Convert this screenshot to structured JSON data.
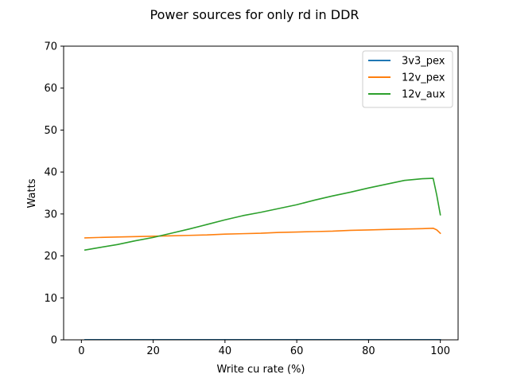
{
  "chart_data": {
    "type": "line",
    "title": "Power sources for only rd in DDR",
    "xlabel": "Write cu rate (%)",
    "ylabel": "Watts",
    "xlim": [
      -4.95,
      104.95
    ],
    "ylim": [
      0,
      70
    ],
    "xticks": [
      0,
      20,
      40,
      60,
      80,
      100
    ],
    "yticks": [
      0,
      10,
      20,
      30,
      40,
      50,
      60,
      70
    ],
    "legend_position": "top-right",
    "series": [
      {
        "name": "3v3_pex",
        "color": "#1f77b4",
        "x": [
          1,
          100
        ],
        "y": [
          0.05,
          0.05
        ]
      },
      {
        "name": "12v_pex",
        "color": "#ff7f0e",
        "x": [
          1,
          5,
          10,
          15,
          20,
          25,
          30,
          35,
          40,
          45,
          50,
          55,
          60,
          65,
          70,
          75,
          80,
          85,
          90,
          95,
          98,
          99,
          100
        ],
        "y": [
          24.3,
          24.4,
          24.5,
          24.6,
          24.7,
          24.8,
          24.9,
          25.0,
          25.2,
          25.3,
          25.4,
          25.6,
          25.7,
          25.8,
          25.9,
          26.1,
          26.2,
          26.3,
          26.4,
          26.5,
          26.6,
          26.2,
          25.4
        ]
      },
      {
        "name": "12v_aux",
        "color": "#2ca02c",
        "x": [
          1,
          5,
          10,
          15,
          20,
          25,
          30,
          35,
          40,
          45,
          50,
          55,
          60,
          65,
          70,
          75,
          80,
          85,
          90,
          95,
          98,
          99,
          100
        ],
        "y": [
          21.4,
          22.0,
          22.7,
          23.6,
          24.4,
          25.4,
          26.4,
          27.5,
          28.6,
          29.6,
          30.4,
          31.3,
          32.2,
          33.3,
          34.3,
          35.2,
          36.2,
          37.1,
          38.0,
          38.4,
          38.5,
          34.5,
          29.8
        ]
      }
    ]
  }
}
